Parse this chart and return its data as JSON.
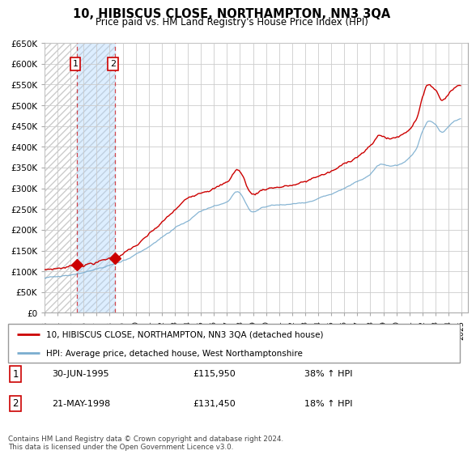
{
  "title": "10, HIBISCUS CLOSE, NORTHAMPTON, NN3 3QA",
  "subtitle": "Price paid vs. HM Land Registry's House Price Index (HPI)",
  "ylim": [
    0,
    650000
  ],
  "yticks": [
    0,
    50000,
    100000,
    150000,
    200000,
    250000,
    300000,
    350000,
    400000,
    450000,
    500000,
    550000,
    600000,
    650000
  ],
  "ytick_labels": [
    "£0",
    "£50K",
    "£100K",
    "£150K",
    "£200K",
    "£250K",
    "£300K",
    "£350K",
    "£400K",
    "£450K",
    "£500K",
    "£550K",
    "£600K",
    "£650K"
  ],
  "xlim_start": 1993.0,
  "xlim_end": 2025.5,
  "transactions": [
    {
      "num": 1,
      "date_str": "30-JUN-1995",
      "date_x": 1995.5,
      "price": 115950,
      "label": "£115,950",
      "pct": "38% ↑ HPI"
    },
    {
      "num": 2,
      "date_str": "21-MAY-1998",
      "date_x": 1998.38,
      "price": 131450,
      "label": "£131,450",
      "pct": "18% ↑ HPI"
    }
  ],
  "legend_line1": "10, HIBISCUS CLOSE, NORTHAMPTON, NN3 3QA (detached house)",
  "legend_line2": "HPI: Average price, detached house, West Northamptonshire",
  "footer": "Contains HM Land Registry data © Crown copyright and database right 2024.\nThis data is licensed under the Open Government Licence v3.0.",
  "line_red_color": "#cc0000",
  "line_blue_color": "#7aadcf",
  "shade_color": "#ddeeff",
  "hatch_color": "#cccccc",
  "grid_color": "#cccccc"
}
